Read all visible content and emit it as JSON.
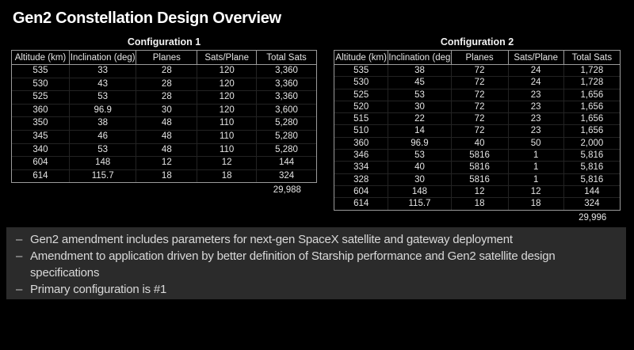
{
  "title": "Gen2 Constellation Design Overview",
  "tables": [
    {
      "title": "Configuration 1",
      "columns": [
        "Altitude (km)",
        "Inclination (deg)",
        "Planes",
        "Sats/Plane",
        "Total Sats"
      ],
      "rows": [
        [
          "535",
          "33",
          "28",
          "120",
          "3,360"
        ],
        [
          "530",
          "43",
          "28",
          "120",
          "3,360"
        ],
        [
          "525",
          "53",
          "28",
          "120",
          "3,360"
        ],
        [
          "360",
          "96.9",
          "30",
          "120",
          "3,600"
        ],
        [
          "350",
          "38",
          "48",
          "110",
          "5,280"
        ],
        [
          "345",
          "46",
          "48",
          "110",
          "5,280"
        ],
        [
          "340",
          "53",
          "48",
          "110",
          "5,280"
        ],
        [
          "604",
          "148",
          "12",
          "12",
          "144"
        ],
        [
          "614",
          "115.7",
          "18",
          "18",
          "324"
        ]
      ],
      "total": "29,988"
    },
    {
      "title": "Configuration 2",
      "columns": [
        "Altitude (km)",
        "Inclination (deg)",
        "Planes",
        "Sats/Plane",
        "Total Sats"
      ],
      "rows": [
        [
          "535",
          "38",
          "72",
          "24",
          "1,728"
        ],
        [
          "530",
          "45",
          "72",
          "24",
          "1,728"
        ],
        [
          "525",
          "53",
          "72",
          "23",
          "1,656"
        ],
        [
          "520",
          "30",
          "72",
          "23",
          "1,656"
        ],
        [
          "515",
          "22",
          "72",
          "23",
          "1,656"
        ],
        [
          "510",
          "14",
          "72",
          "23",
          "1,656"
        ],
        [
          "360",
          "96.9",
          "40",
          "50",
          "2,000"
        ],
        [
          "346",
          "53",
          "5816",
          "1",
          "5,816"
        ],
        [
          "334",
          "40",
          "5816",
          "1",
          "5,816"
        ],
        [
          "328",
          "30",
          "5816",
          "1",
          "5,816"
        ],
        [
          "604",
          "148",
          "12",
          "12",
          "144"
        ],
        [
          "614",
          "115.7",
          "18",
          "18",
          "324"
        ]
      ],
      "total": "29,996"
    }
  ],
  "bullet_marker": "–",
  "bullets": [
    "Gen2 amendment includes parameters for next-gen SpaceX satellite and gateway deployment",
    "Amendment to application driven by better definition of Starship performance and Gen2 satellite design specifications",
    "Primary configuration is #1"
  ],
  "colors": {
    "background": "#000000",
    "notes_panel": "#2b2b2b",
    "table_border": "#9b9b9b",
    "table_grid": "#232323",
    "text": "#e4e4e4",
    "title_text": "#ffffff"
  }
}
